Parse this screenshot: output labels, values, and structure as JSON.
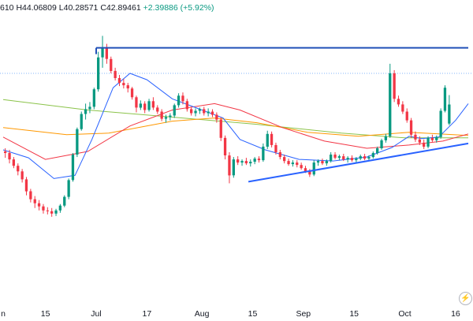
{
  "legend": {
    "open_fragment": "610",
    "high": "H44.06809",
    "low": "L40.28571",
    "close": "C42.89461",
    "change": "+2.39886 (+5.92%)"
  },
  "chart_data": {
    "type": "candlestick",
    "x_axis_labels": [
      "n",
      "15",
      "Jul",
      "17",
      "Aug",
      "15",
      "Sep",
      "15",
      "Oct",
      "16"
    ],
    "ohlc_last": {
      "high": 44.06809,
      "low": 40.28571,
      "close": 42.89461,
      "change": 2.39886,
      "change_pct": 5.92
    },
    "ylim": [
      18,
      56
    ],
    "x_domain": [
      0,
      110
    ],
    "tick_positions": [
      0,
      10,
      22,
      34,
      47,
      59,
      71,
      83,
      95,
      107
    ],
    "candles": [
      [
        37.0,
        37.4,
        36.2,
        36.8
      ],
      [
        36.8,
        37.2,
        35.5,
        36.0
      ],
      [
        36.0,
        36.3,
        34.9,
        35.2
      ],
      [
        35.2,
        35.5,
        34.0,
        34.5
      ],
      [
        34.5,
        34.8,
        33.1,
        33.5
      ],
      [
        33.5,
        33.8,
        31.5,
        32.0
      ],
      [
        32.0,
        32.3,
        30.6,
        31.0
      ],
      [
        31.0,
        31.4,
        29.9,
        30.5
      ],
      [
        30.5,
        30.9,
        29.6,
        30.1
      ],
      [
        30.1,
        30.4,
        29.2,
        29.6
      ],
      [
        29.6,
        30.0,
        29.1,
        29.5
      ],
      [
        29.5,
        29.9,
        28.8,
        29.2
      ],
      [
        29.2,
        29.8,
        28.9,
        29.6
      ],
      [
        29.6,
        30.4,
        29.3,
        30.2
      ],
      [
        30.2,
        31.5,
        30.0,
        31.3
      ],
      [
        31.3,
        33.6,
        31.0,
        33.4
      ],
      [
        33.4,
        36.8,
        33.2,
        36.6
      ],
      [
        36.6,
        40.0,
        36.3,
        39.8
      ],
      [
        39.8,
        42.0,
        39.6,
        41.7
      ],
      [
        41.7,
        43.0,
        41.0,
        42.3
      ],
      [
        42.3,
        43.2,
        41.8,
        42.6
      ],
      [
        42.6,
        45.0,
        42.3,
        44.8
      ],
      [
        44.8,
        49.5,
        44.5,
        48.8
      ],
      [
        48.8,
        51.5,
        47.5,
        50.0
      ],
      [
        50.0,
        50.5,
        48.0,
        48.6
      ],
      [
        48.6,
        48.9,
        46.8,
        47.1
      ],
      [
        47.1,
        47.5,
        45.9,
        46.2
      ],
      [
        46.2,
        46.6,
        45.2,
        45.6
      ],
      [
        45.6,
        46.1,
        44.9,
        45.3
      ],
      [
        45.3,
        45.6,
        44.4,
        44.9
      ],
      [
        44.9,
        45.1,
        43.5,
        43.8
      ],
      [
        43.8,
        44.0,
        41.9,
        42.5
      ],
      [
        42.5,
        43.4,
        42.2,
        43.0
      ],
      [
        43.0,
        43.3,
        41.8,
        42.2
      ],
      [
        42.2,
        43.6,
        42.0,
        43.3
      ],
      [
        43.3,
        43.8,
        42.2,
        42.5
      ],
      [
        42.5,
        42.8,
        41.7,
        42.0
      ],
      [
        42.0,
        42.3,
        40.8,
        41.1
      ],
      [
        41.1,
        41.6,
        40.6,
        41.3
      ],
      [
        41.3,
        41.8,
        40.9,
        41.5
      ],
      [
        41.5,
        43.0,
        41.2,
        42.8
      ],
      [
        42.8,
        44.3,
        42.5,
        44.0
      ],
      [
        44.0,
        44.4,
        42.9,
        43.3
      ],
      [
        43.3,
        43.6,
        42.0,
        42.3
      ],
      [
        42.3,
        42.6,
        41.5,
        41.8
      ],
      [
        41.8,
        42.4,
        41.4,
        42.1
      ],
      [
        42.1,
        42.5,
        41.7,
        42.3
      ],
      [
        42.3,
        42.6,
        41.5,
        41.8
      ],
      [
        41.8,
        42.4,
        41.4,
        42.0
      ],
      [
        42.0,
        42.3,
        41.3,
        41.6
      ],
      [
        41.6,
        41.9,
        40.6,
        41.0
      ],
      [
        41.0,
        41.3,
        38.3,
        38.7
      ],
      [
        38.7,
        39.0,
        36.0,
        36.5
      ],
      [
        36.5,
        36.9,
        33.0,
        34.0
      ],
      [
        34.0,
        36.3,
        33.7,
        36.0
      ],
      [
        36.0,
        36.4,
        35.3,
        35.6
      ],
      [
        35.6,
        36.0,
        35.2,
        35.8
      ],
      [
        35.8,
        36.2,
        35.3,
        35.5
      ],
      [
        35.5,
        36.0,
        35.1,
        35.7
      ],
      [
        35.7,
        36.3,
        35.4,
        36.1
      ],
      [
        36.1,
        36.4,
        35.6,
        35.9
      ],
      [
        35.9,
        38.0,
        35.7,
        37.6
      ],
      [
        37.6,
        39.6,
        37.3,
        39.2
      ],
      [
        39.2,
        39.5,
        37.5,
        37.8
      ],
      [
        37.8,
        38.1,
        36.6,
        36.9
      ],
      [
        36.9,
        37.2,
        36.0,
        36.3
      ],
      [
        36.3,
        36.6,
        35.5,
        35.8
      ],
      [
        35.8,
        36.1,
        35.2,
        35.4
      ],
      [
        35.4,
        35.9,
        35.1,
        35.6
      ],
      [
        35.6,
        35.9,
        35.0,
        35.3
      ],
      [
        35.3,
        35.6,
        34.7,
        34.9
      ],
      [
        34.9,
        35.2,
        34.3,
        34.5
      ],
      [
        34.5,
        34.8,
        33.8,
        34.1
      ],
      [
        34.1,
        35.9,
        33.9,
        35.6
      ],
      [
        35.6,
        36.0,
        35.2,
        35.8
      ],
      [
        35.8,
        36.1,
        35.3,
        35.5
      ],
      [
        35.5,
        36.0,
        35.2,
        35.8
      ],
      [
        35.8,
        36.9,
        35.6,
        36.6
      ],
      [
        36.6,
        36.9,
        36.0,
        36.2
      ],
      [
        36.2,
        36.6,
        35.9,
        36.4
      ],
      [
        36.4,
        36.7,
        35.8,
        36.0
      ],
      [
        36.0,
        36.4,
        35.6,
        36.2
      ],
      [
        36.2,
        36.5,
        35.7,
        35.9
      ],
      [
        35.9,
        36.3,
        35.6,
        36.1
      ],
      [
        36.1,
        36.6,
        35.9,
        36.4
      ],
      [
        36.4,
        36.7,
        35.9,
        36.1
      ],
      [
        36.1,
        36.5,
        35.8,
        36.3
      ],
      [
        36.3,
        37.0,
        36.1,
        36.8
      ],
      [
        36.8,
        37.6,
        36.6,
        37.4
      ],
      [
        37.4,
        38.6,
        37.2,
        38.4
      ],
      [
        38.4,
        39.2,
        38.1,
        38.9
      ],
      [
        38.9,
        48.0,
        38.7,
        46.8
      ],
      [
        46.8,
        47.2,
        43.2,
        43.6
      ],
      [
        43.6,
        44.0,
        42.6,
        42.9
      ],
      [
        42.9,
        43.3,
        41.7,
        42.0
      ],
      [
        42.0,
        42.4,
        40.6,
        40.9
      ],
      [
        40.9,
        41.2,
        38.7,
        39.1
      ],
      [
        39.1,
        39.5,
        38.2,
        38.5
      ],
      [
        38.5,
        38.9,
        37.8,
        38.1
      ],
      [
        38.1,
        38.5,
        37.3,
        37.6
      ],
      [
        37.6,
        38.9,
        37.4,
        38.7
      ],
      [
        38.7,
        39.1,
        38.2,
        38.4
      ],
      [
        38.4,
        39.0,
        38.1,
        38.8
      ],
      [
        38.8,
        42.4,
        38.6,
        42.1
      ],
      [
        42.1,
        45.3,
        41.9,
        45.0
      ],
      [
        40.5,
        44.07,
        40.29,
        42.89
      ]
    ],
    "ma_fast": [
      [
        0,
        37.2
      ],
      [
        6,
        36.2
      ],
      [
        12,
        33.6
      ],
      [
        17,
        34.0
      ],
      [
        21,
        38.5
      ],
      [
        26,
        45.0
      ],
      [
        30,
        46.8
      ],
      [
        34,
        46.0
      ],
      [
        40,
        43.6
      ],
      [
        46,
        42.4
      ],
      [
        52,
        41.2
      ],
      [
        56,
        38.5
      ],
      [
        62,
        37.2
      ],
      [
        70,
        36.0
      ],
      [
        78,
        35.8
      ],
      [
        86,
        36.3
      ],
      [
        92,
        37.5
      ],
      [
        96,
        38.9
      ],
      [
        99,
        38.6
      ],
      [
        103,
        38.8
      ],
      [
        107,
        40.9
      ],
      [
        110,
        43.0
      ]
    ],
    "ma_mid": [
      [
        0,
        38.8
      ],
      [
        10,
        36.0
      ],
      [
        20,
        37.0
      ],
      [
        30,
        40.2
      ],
      [
        40,
        42.2
      ],
      [
        50,
        43.0
      ],
      [
        56,
        42.2
      ],
      [
        66,
        40.0
      ],
      [
        76,
        38.3
      ],
      [
        86,
        37.4
      ],
      [
        96,
        37.8
      ],
      [
        104,
        38.3
      ],
      [
        110,
        39.2
      ]
    ],
    "ma_slow": [
      [
        0,
        40.0
      ],
      [
        15,
        39.1
      ],
      [
        25,
        39.3
      ],
      [
        40,
        40.8
      ],
      [
        50,
        41.2
      ],
      [
        60,
        40.6
      ],
      [
        72,
        39.4
      ],
      [
        84,
        38.9
      ],
      [
        96,
        39.4
      ],
      [
        110,
        39.0
      ]
    ],
    "ma_long": [
      [
        0,
        43.5
      ],
      [
        20,
        42.2
      ],
      [
        40,
        41.3
      ],
      [
        60,
        40.4
      ],
      [
        80,
        39.3
      ],
      [
        95,
        38.7
      ],
      [
        110,
        38.7
      ]
    ],
    "resistance_line": {
      "x": [
        22,
        110
      ],
      "y": [
        50.0,
        50.0
      ]
    },
    "dotted_level": {
      "y": 46.8
    },
    "support_line": {
      "x": [
        58,
        110
      ],
      "y": [
        33.2,
        38.0
      ]
    }
  }
}
